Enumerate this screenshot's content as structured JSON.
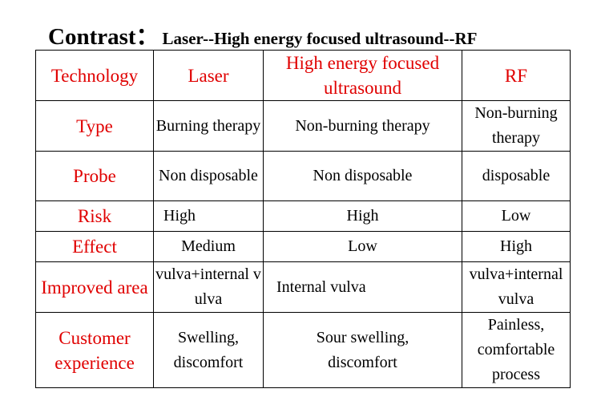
{
  "title": {
    "main": "Contrast：",
    "sub": "Laser--High energy focused ultrasound--RF"
  },
  "table": {
    "headers": [
      "Technology",
      "Laser",
      "High energy focused ultrasound",
      "RF"
    ],
    "rows": [
      {
        "label": "Type",
        "cells": [
          "Burning therapy",
          "Non-burning therapy",
          "Non-burning therapy"
        ]
      },
      {
        "label": "Probe",
        "cells": [
          "Non disposable",
          "Non disposable",
          "disposable"
        ]
      },
      {
        "label": "Risk",
        "cells": [
          "High",
          "High",
          "Low"
        ]
      },
      {
        "label": "Effect",
        "cells": [
          "Medium",
          "Low",
          "High"
        ]
      },
      {
        "label": "Improved area",
        "cells": [
          "vulva+internal vulva",
          "Internal vulva",
          "vulva+internal vulva"
        ]
      },
      {
        "label": "Customer experience",
        "cells": [
          "Swelling, discomfort",
          "Sour swelling, discomfort",
          "Painless, comfortable process"
        ]
      }
    ]
  },
  "colors": {
    "label_text": "#e00000",
    "body_text": "#000000",
    "border": "#000000"
  }
}
